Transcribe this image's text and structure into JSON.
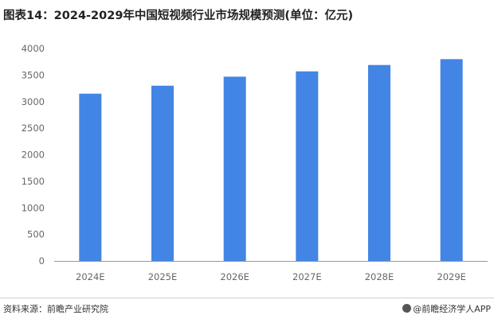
{
  "title": "图表14：2024-2029年中国短视频行业市场规模预测(单位：亿元)",
  "footer": {
    "source": "资料来源：前瞻产业研究院",
    "brand": "@前瞻经济学人APP",
    "brand_icon": "brand-logo-icon"
  },
  "colors": {
    "bar": "#4285E4",
    "axis": "#999999"
  },
  "chart_data": {
    "type": "bar",
    "categories": [
      "2024E",
      "2025E",
      "2026E",
      "2027E",
      "2028E",
      "2029E"
    ],
    "values": [
      3150,
      3300,
      3470,
      3570,
      3690,
      3800
    ],
    "ylim": [
      0,
      4000
    ],
    "yticks": [
      0,
      500,
      1000,
      1500,
      2000,
      2500,
      3000,
      3500,
      4000
    ],
    "grid": false,
    "title": "",
    "xlabel": "",
    "ylabel": ""
  }
}
